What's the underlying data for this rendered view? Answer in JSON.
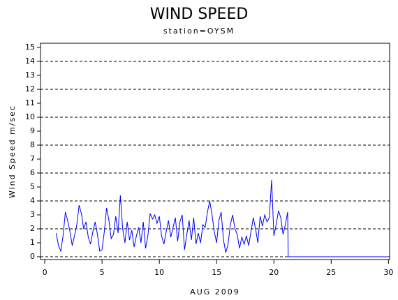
{
  "chart_data": {
    "type": "line",
    "title": "WIND SPEED",
    "subtitle": "station=OYSM",
    "xlabel": "AUG 2009",
    "ylabel": "Wind Speed m/sec",
    "x": [
      1.0,
      1.2,
      1.4,
      1.6,
      1.8,
      2.0,
      2.2,
      2.4,
      2.6,
      2.8,
      3.0,
      3.2,
      3.4,
      3.6,
      3.8,
      4.0,
      4.2,
      4.4,
      4.6,
      4.8,
      5.0,
      5.2,
      5.4,
      5.6,
      5.8,
      6.0,
      6.2,
      6.4,
      6.6,
      6.8,
      7.0,
      7.2,
      7.4,
      7.6,
      7.8,
      8.0,
      8.2,
      8.4,
      8.6,
      8.8,
      9.0,
      9.2,
      9.4,
      9.6,
      9.8,
      10.0,
      10.2,
      10.4,
      10.6,
      10.8,
      11.0,
      11.2,
      11.4,
      11.6,
      11.8,
      12.0,
      12.2,
      12.4,
      12.6,
      12.8,
      13.0,
      13.2,
      13.4,
      13.6,
      13.8,
      14.0,
      14.2,
      14.4,
      14.6,
      14.8,
      15.0,
      15.2,
      15.4,
      15.6,
      15.8,
      16.0,
      16.2,
      16.4,
      16.6,
      16.8,
      17.0,
      17.2,
      17.4,
      17.6,
      17.8,
      18.0,
      18.2,
      18.4,
      18.6,
      18.8,
      19.0,
      19.2,
      19.4,
      19.6,
      19.8,
      20.0,
      20.2,
      20.4,
      20.6,
      20.8,
      21.0,
      21.2,
      21.25,
      30
    ],
    "series": [
      {
        "name": "wind speed",
        "color": "#0000ff",
        "values": [
          1.7,
          0.8,
          0.4,
          1.5,
          3.2,
          2.6,
          1.8,
          0.8,
          1.5,
          2.3,
          3.7,
          3.1,
          2.0,
          2.5,
          1.4,
          0.9,
          1.8,
          2.5,
          1.6,
          0.4,
          0.5,
          1.8,
          3.5,
          2.6,
          1.3,
          1.6,
          2.9,
          1.7,
          4.4,
          2.0,
          1.0,
          2.5,
          1.2,
          1.9,
          0.7,
          1.5,
          2.1,
          1.0,
          2.5,
          0.6,
          1.5,
          3.1,
          2.7,
          3.0,
          2.4,
          2.9,
          1.5,
          0.9,
          1.8,
          2.6,
          1.4,
          2.1,
          2.8,
          1.1,
          2.5,
          3.0,
          0.5,
          1.6,
          2.6,
          1.2,
          2.8,
          0.9,
          1.7,
          1.0,
          2.3,
          2.1,
          3.2,
          4.0,
          3.0,
          1.8,
          1.0,
          2.6,
          3.2,
          1.2,
          0.3,
          0.9,
          2.3,
          3.0,
          2.0,
          1.6,
          0.6,
          1.4,
          0.9,
          1.5,
          0.8,
          1.8,
          2.8,
          2.0,
          1.0,
          2.9,
          2.2,
          3.0,
          2.5,
          2.8,
          5.5,
          1.5,
          2.3,
          3.3,
          2.8,
          1.6,
          2.3,
          3.2,
          0,
          0
        ]
      }
    ],
    "xlim": [
      -0.37,
      30.1
    ],
    "xticks": [
      0,
      5,
      10,
      15,
      20,
      25,
      30
    ],
    "ylim": [
      -0.2,
      15.3
    ],
    "yticks": [
      0,
      1,
      2,
      3,
      4,
      5,
      6,
      7,
      8,
      9,
      10,
      11,
      12,
      13,
      14,
      15
    ],
    "grid": true
  }
}
